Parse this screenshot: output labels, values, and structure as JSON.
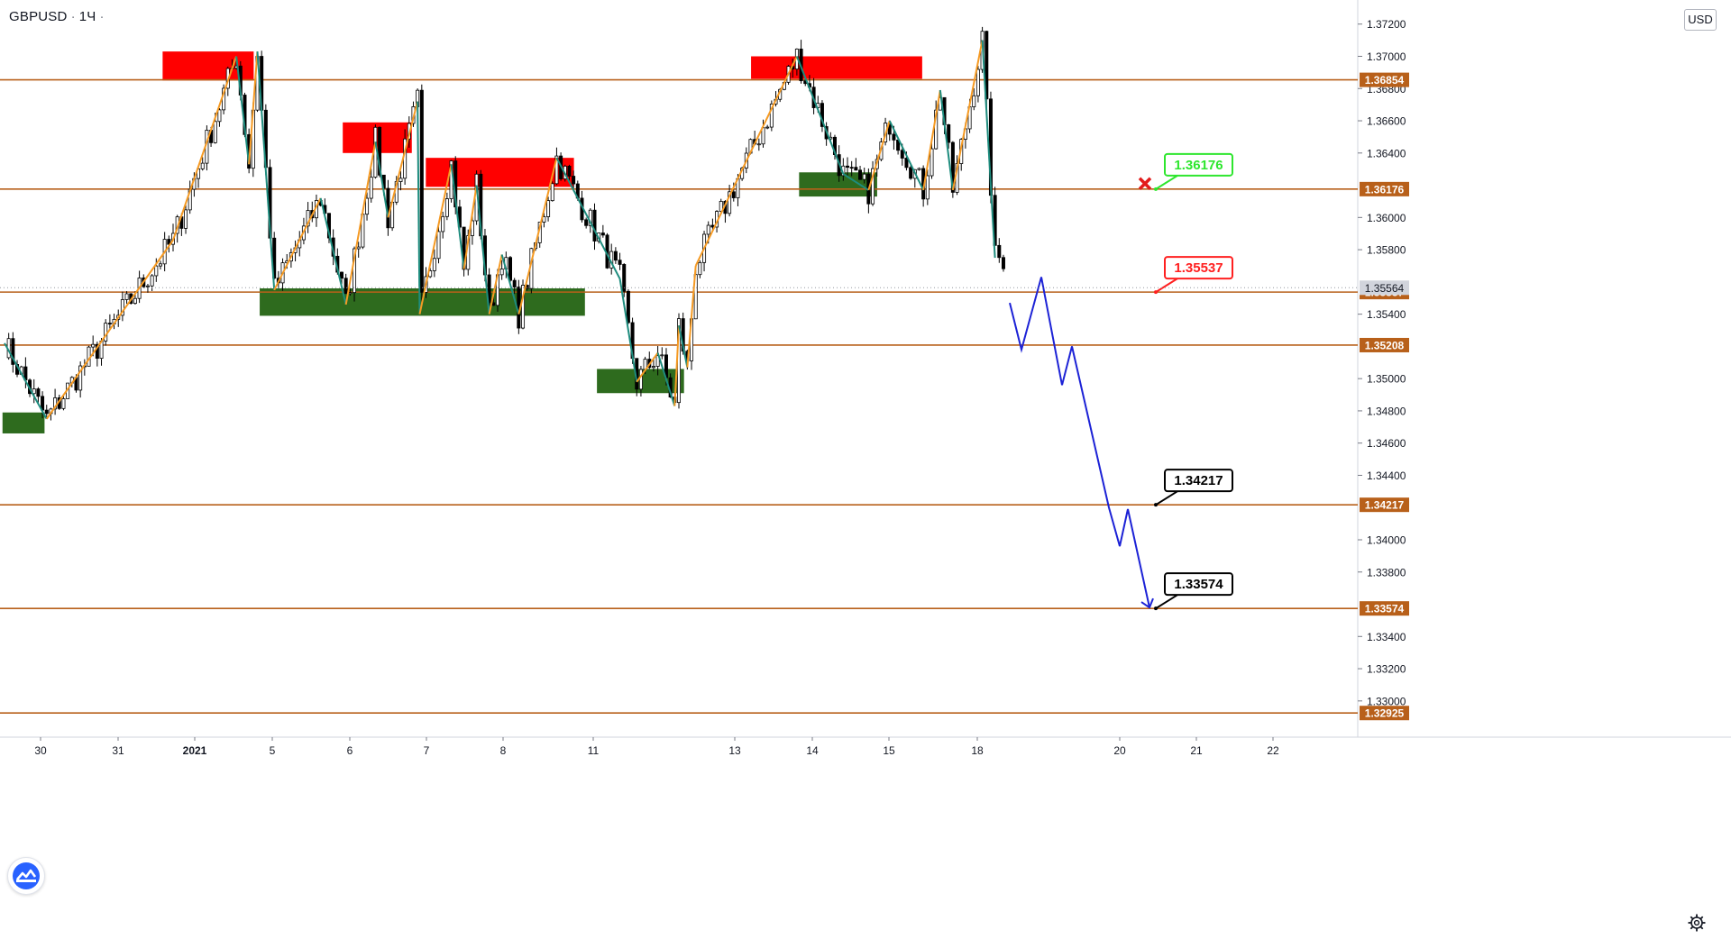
{
  "header": {
    "symbol": "GBPUSD",
    "interval": "1Ч",
    "dot": "·"
  },
  "currency": "USD",
  "icons": {
    "logo": "tradingview-logo-icon",
    "settings": "gear-icon",
    "cancel": "red-x-icon"
  },
  "colors": {
    "level_line": "#b8601a",
    "supply_zone": "#ff0000",
    "demand_zone": "#2e6b1e",
    "zigzag_up": "#f59a23",
    "zigzag_down": "#1e8c7e",
    "projection": "#1c22d6",
    "bull_candle": "#ffffff",
    "bear_candle": "#000000",
    "label_green": "#2ee62e",
    "label_red": "#ff2020",
    "label_black": "#000000"
  },
  "chart_data": {
    "type": "candlestick",
    "title": "",
    "symbol": "GBPUSD",
    "timeframe": "1Ч",
    "y_range": [
      1.329,
      1.3727
    ],
    "x_ticks": [
      "30",
      "31",
      "2021",
      "5",
      "6",
      "7",
      "8",
      "11",
      "13",
      "14",
      "15",
      "18",
      "20",
      "21",
      "22"
    ],
    "y_ticks": [
      "1.37200",
      "1.37000",
      "1.36800",
      "1.36600",
      "1.36400",
      "1.36000",
      "1.35800",
      "1.35400",
      "1.35000",
      "1.34800",
      "1.34600",
      "1.34400",
      "1.34000",
      "1.33800",
      "1.33400",
      "1.33200",
      "1.33000"
    ],
    "last_price": "1.35564",
    "levels": [
      "1.36854",
      "1.36176",
      "1.35537",
      "1.35208",
      "1.34217",
      "1.33574",
      "1.32925"
    ],
    "price_callouts": [
      {
        "value": "1.36176",
        "style": "green"
      },
      {
        "value": "1.35537",
        "style": "red"
      },
      {
        "value": "1.34217",
        "style": "black"
      },
      {
        "value": "1.33574",
        "style": "black"
      }
    ],
    "supply_zones": [
      {
        "from": "31",
        "to": "4",
        "low": 1.3685,
        "high": 1.3703
      },
      {
        "from": "6",
        "to": "6",
        "low": 1.364,
        "high": 1.3659
      },
      {
        "from": "7",
        "to": "8",
        "low": 1.3619,
        "high": 1.3637
      },
      {
        "from": "13",
        "to": "15",
        "low": 1.3686,
        "high": 1.37
      }
    ],
    "demand_zones": [
      {
        "from": "29",
        "to": "30",
        "low": 1.3466,
        "high": 1.3479
      },
      {
        "from": "4",
        "to": "8",
        "low": 1.3539,
        "high": 1.3556
      },
      {
        "from": "11",
        "to": "12",
        "low": 1.3491,
        "high": 1.3506
      },
      {
        "from": "13",
        "to": "14",
        "low": 1.3613,
        "high": 1.3628
      }
    ],
    "zigzag_points": [
      1.3522,
      1.3475,
      1.3586,
      1.37,
      1.3633,
      1.3703,
      1.3555,
      1.3612,
      1.3546,
      1.3647,
      1.36,
      1.3672,
      1.354,
      1.3633,
      1.3568,
      1.362,
      1.354,
      1.3577,
      1.354,
      1.3637,
      1.3562,
      1.3498,
      1.3516,
      1.3483,
      1.3533,
      1.3507,
      1.357,
      1.37,
      1.3627,
      1.3617,
      1.366,
      1.3617,
      1.3679,
      1.3617,
      1.371,
      1.3575
    ],
    "projection_path": [
      1.3547,
      1.3518,
      1.3563,
      1.3496,
      1.352,
      1.342,
      1.3396,
      1.3419,
      1.3358
    ],
    "projection_target": "1.33574",
    "cancel_marker_price": 1.3621
  }
}
